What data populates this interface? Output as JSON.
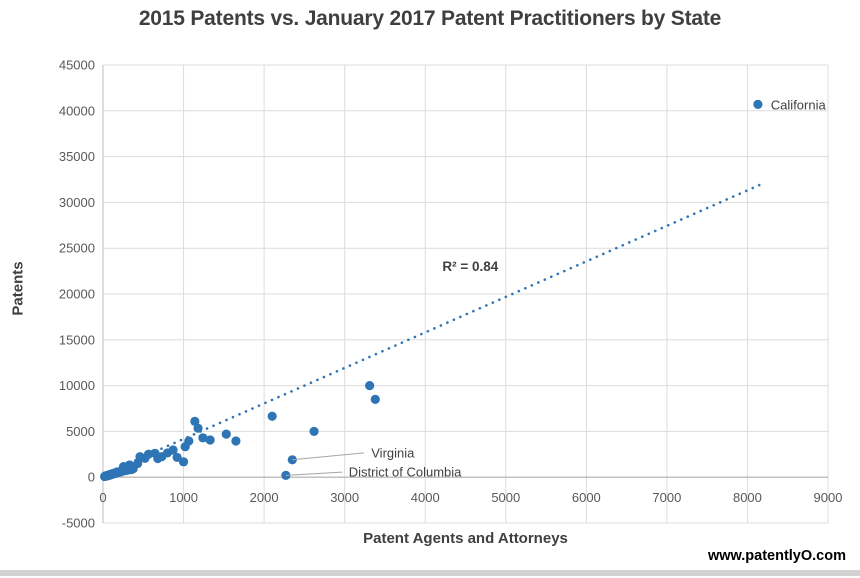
{
  "watermark": {
    "text": "www.patentlyO.com"
  },
  "colors": {
    "point": "#2e75b6",
    "trendline": "#2e75b6",
    "gridline": "#dcdcdc",
    "axis_line": "#c9c9c9",
    "zero_axis_line": "#b3b3b3",
    "tick_label": "#595959",
    "title": "#3f3f3f",
    "annotation": "#404040",
    "leader_line": "#a6a6a6",
    "bottom_bar": "#d2d2d2"
  },
  "chart_data": {
    "type": "scatter",
    "title": "2015 Patents vs. January 2017 Patent Practitioners by State",
    "xlabel": "Patent Agents and Attorneys",
    "ylabel": "Patents",
    "xlim": [
      0,
      9000
    ],
    "ylim": [
      -5000,
      45000
    ],
    "x_ticks": [
      0,
      1000,
      2000,
      3000,
      4000,
      5000,
      6000,
      7000,
      8000,
      9000
    ],
    "y_ticks": [
      -5000,
      0,
      5000,
      10000,
      15000,
      20000,
      25000,
      30000,
      35000,
      40000,
      45000
    ],
    "grid": true,
    "legend_position": "none",
    "series": [
      {
        "name": "States",
        "points": [
          [
            20,
            80
          ],
          [
            30,
            150
          ],
          [
            40,
            120
          ],
          [
            55,
            200
          ],
          [
            65,
            170
          ],
          [
            75,
            260
          ],
          [
            85,
            230
          ],
          [
            95,
            320
          ],
          [
            105,
            290
          ],
          [
            115,
            380
          ],
          [
            125,
            350
          ],
          [
            135,
            440
          ],
          [
            150,
            410
          ],
          [
            160,
            500
          ],
          [
            170,
            470
          ],
          [
            180,
            560
          ],
          [
            195,
            530
          ],
          [
            210,
            620
          ],
          [
            225,
            590
          ],
          [
            240,
            680
          ],
          [
            255,
            740
          ],
          [
            270,
            710
          ],
          [
            285,
            800
          ],
          [
            305,
            770
          ],
          [
            325,
            860
          ],
          [
            350,
            830
          ],
          [
            375,
            920
          ],
          [
            255,
            1160
          ],
          [
            330,
            1330
          ],
          [
            430,
            1500
          ],
          [
            460,
            2240
          ],
          [
            520,
            2060
          ],
          [
            565,
            2510
          ],
          [
            645,
            2610
          ],
          [
            680,
            2040
          ],
          [
            730,
            2240
          ],
          [
            800,
            2650
          ],
          [
            870,
            2970
          ],
          [
            920,
            2160
          ],
          [
            1000,
            1680
          ],
          [
            1020,
            3330
          ],
          [
            1065,
            3950
          ],
          [
            1140,
            6100
          ],
          [
            1180,
            5350
          ],
          [
            1240,
            4300
          ],
          [
            1330,
            4060
          ],
          [
            1530,
            4700
          ],
          [
            1650,
            3950
          ],
          [
            2100,
            6650
          ],
          [
            2620,
            5000
          ],
          [
            3310,
            10000
          ],
          [
            3380,
            8500
          ],
          [
            2350,
            1900
          ],
          [
            2270,
            200
          ],
          [
            8130,
            40700
          ]
        ]
      }
    ],
    "labeled_points": {
      "california": [
        8130,
        40700
      ],
      "virginia": [
        2350,
        1900
      ],
      "district_of_columbia": [
        2270,
        200
      ]
    },
    "trendline": {
      "style": "dotted",
      "start": [
        0,
        300
      ],
      "end": [
        8150,
        31900
      ],
      "r_squared": 0.84
    },
    "annotations": [
      {
        "id": "r-squared-label",
        "text": "R² = 0.84",
        "at": [
          4560,
          23000
        ],
        "anchor": "middle",
        "bold": true,
        "leader": null
      },
      {
        "id": "california-label",
        "text": "California",
        "at": [
          8290,
          40650
        ],
        "anchor": "start",
        "bold": false,
        "leader": null
      },
      {
        "id": "virginia-label",
        "text": "Virginia",
        "at": [
          3330,
          2650
        ],
        "anchor": "start",
        "bold": false,
        "leader": {
          "from": [
            2350,
            1900
          ],
          "to": [
            3240,
            2650
          ]
        }
      },
      {
        "id": "dc-label",
        "text": "District of Columbia",
        "at": [
          3050,
          550
        ],
        "anchor": "start",
        "bold": false,
        "leader": {
          "from": [
            2270,
            200
          ],
          "to": [
            2970,
            550
          ]
        }
      }
    ]
  }
}
